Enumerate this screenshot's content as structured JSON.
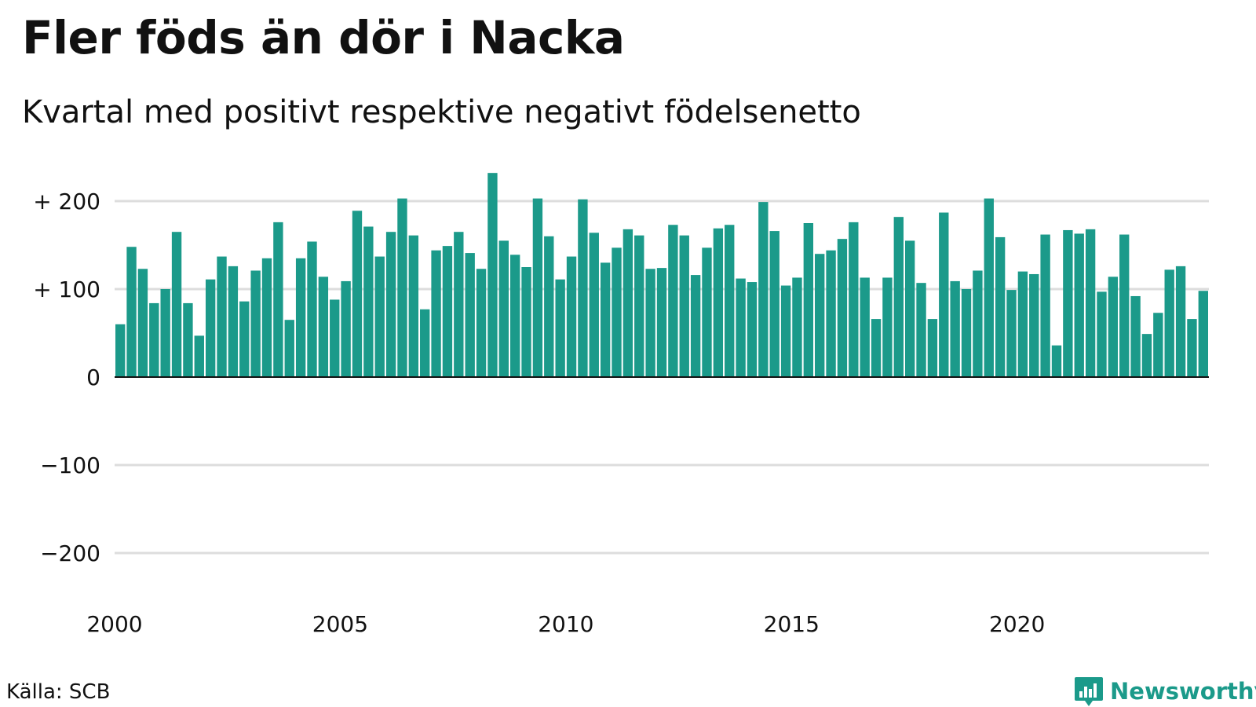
{
  "title": "Fler föds än dör i Nacka",
  "subtitle": "Kvartal med positivt respektive negativt födelsenetto",
  "source": "Källa: SCB",
  "brand": {
    "name": "Newsworthy",
    "logo_icon": "newsworthy-bar-chart-icon"
  },
  "colors": {
    "bar": "#1b9a8a",
    "grid": "#dddddd",
    "baseline": "#111111",
    "brand": "#1b9a8a"
  },
  "chart_data": {
    "type": "bar",
    "title": "Fler föds än dör i Nacka",
    "subtitle": "Kvartal med positivt respektive negativt födelsenetto",
    "xlabel": "",
    "ylabel": "",
    "ylim": [
      -240,
      240
    ],
    "grid": true,
    "y_ticks": [
      {
        "value": 200,
        "label": "+ 200"
      },
      {
        "value": 100,
        "label": "+ 100"
      },
      {
        "value": 0,
        "label": "0"
      },
      {
        "value": -100,
        "label": "−100"
      },
      {
        "value": -200,
        "label": "−200"
      }
    ],
    "x_ticks": [
      {
        "value": 2000,
        "label": "2000"
      },
      {
        "value": 2005,
        "label": "2005"
      },
      {
        "value": 2010,
        "label": "2010"
      },
      {
        "value": 2015,
        "label": "2015"
      },
      {
        "value": 2020,
        "label": "2020"
      }
    ],
    "start_year": 2000,
    "quarters_per_year": 4,
    "series": [
      {
        "values": [
          60,
          148,
          123,
          84,
          100,
          165,
          84,
          47,
          111,
          137,
          126,
          86,
          121,
          135,
          176,
          65,
          135,
          154,
          114,
          88,
          109,
          189,
          171,
          137,
          165,
          203,
          161,
          77,
          144,
          149,
          165,
          141,
          123,
          232,
          155,
          139,
          125,
          203,
          160,
          111,
          137,
          202,
          164,
          130,
          147,
          168,
          161,
          123,
          124,
          173,
          161,
          116,
          147,
          169,
          173,
          112,
          108,
          199,
          166,
          104,
          113,
          175,
          140,
          144,
          157,
          176,
          113,
          66,
          113,
          182,
          155,
          107,
          66,
          187,
          109,
          100,
          121,
          203,
          159,
          99,
          120,
          117,
          162,
          36,
          167,
          163,
          168,
          97,
          114,
          162,
          92,
          49,
          73,
          122,
          126,
          66,
          98
        ]
      }
    ]
  }
}
